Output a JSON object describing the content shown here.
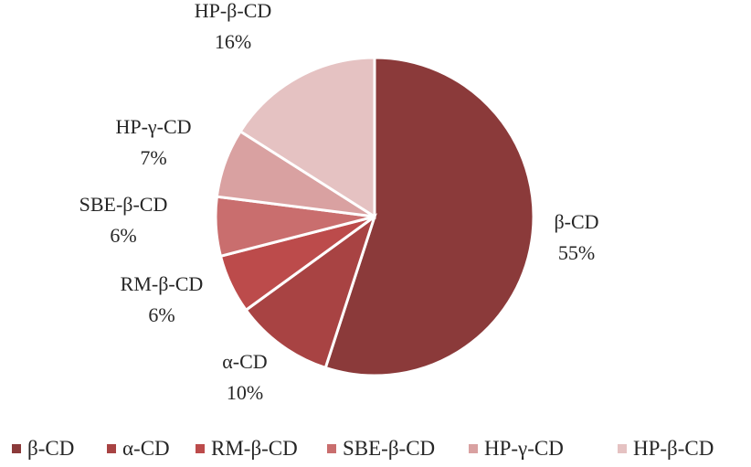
{
  "chart_data": {
    "type": "pie",
    "title": "",
    "categories": [
      "β-CD",
      "α-CD",
      "RM-β-CD",
      "SBE-β-CD",
      "HP-γ-CD",
      "HP-β-CD"
    ],
    "values": [
      55,
      10,
      6,
      6,
      7,
      16
    ],
    "labels": [
      "55%",
      "10%",
      "6%",
      "6%",
      "7%",
      "16%"
    ],
    "colors": [
      "#8b3a3a",
      "#a84343",
      "#bc4b4b",
      "#c96e6e",
      "#d9a1a1",
      "#e5c2c2"
    ],
    "start_angle_deg": 0,
    "direction": "clockwise",
    "legend_position": "bottom"
  }
}
